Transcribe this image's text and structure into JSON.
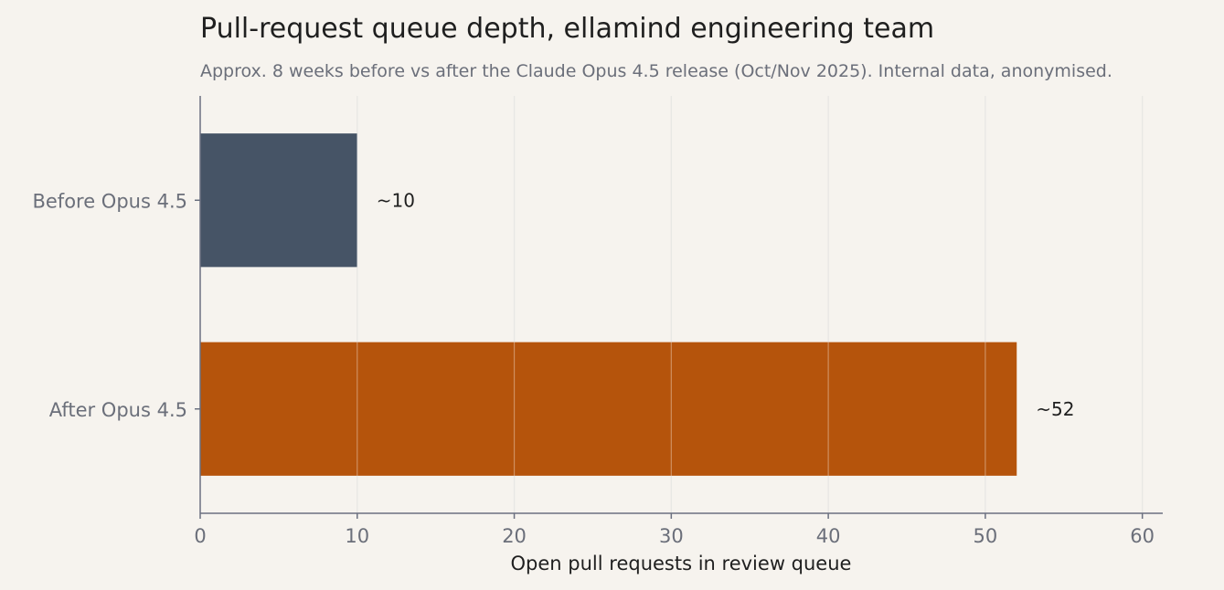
{
  "chart_data": {
    "type": "bar",
    "orientation": "horizontal",
    "title": "Pull-request queue depth, ellamind engineering team",
    "subtitle": "Approx. 8 weeks before vs after the Claude Opus 4.5 release (Oct/Nov 2025). Internal data, anonymised.",
    "xlabel": "Open pull requests in review queue",
    "ylabel": "",
    "categories": [
      "Before Opus 4.5",
      "After Opus 4.5"
    ],
    "values": [
      10,
      52
    ],
    "data_labels": [
      "~10",
      "~52"
    ],
    "colors": [
      "#465466",
      "#b5540c"
    ],
    "xlim": [
      0,
      61.3
    ],
    "xticks": [
      0,
      10,
      20,
      30,
      40,
      50,
      60
    ],
    "grid": "vertical",
    "legend": "none"
  }
}
